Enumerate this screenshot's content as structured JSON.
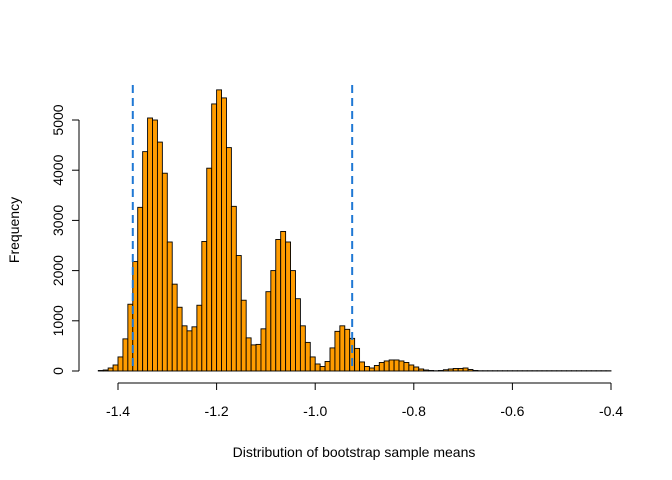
{
  "chart_data": {
    "type": "bar",
    "title": "",
    "xlabel": "Distribution of bootstrap sample means",
    "ylabel": "Frequency",
    "xlim": [
      -1.45,
      -0.4
    ],
    "ylim": [
      0,
      5600
    ],
    "x_ticks": [
      -1.4,
      -1.2,
      -1.0,
      -0.8,
      -0.6,
      -0.4
    ],
    "x_tick_labels": [
      "-1.4",
      "-1.2",
      "-1.0",
      "-0.8",
      "-0.6",
      "-0.4"
    ],
    "y_ticks": [
      0,
      1000,
      2000,
      3000,
      4000,
      5000
    ],
    "y_tick_labels": [
      "0",
      "1000",
      "2000",
      "3000",
      "4000",
      "5000"
    ],
    "bin_width": 0.01,
    "bin_start": -1.44,
    "counts": [
      10,
      20,
      60,
      120,
      280,
      640,
      1330,
      2180,
      3260,
      4370,
      5040,
      5000,
      4560,
      3940,
      2570,
      1730,
      1270,
      900,
      800,
      880,
      1310,
      2580,
      4040,
      5320,
      5600,
      5440,
      4450,
      3280,
      2300,
      1410,
      660,
      520,
      530,
      840,
      1580,
      2000,
      2620,
      2780,
      2570,
      2000,
      1440,
      900,
      570,
      280,
      140,
      90,
      190,
      460,
      790,
      900,
      830,
      650,
      450,
      180,
      90,
      60,
      110,
      170,
      200,
      220,
      220,
      200,
      170,
      120,
      80,
      40,
      20,
      10,
      5,
      10,
      25,
      40,
      50,
      50,
      60,
      30,
      10,
      5,
      5,
      5,
      5,
      5,
      5,
      5,
      5,
      5,
      5,
      5,
      5,
      5,
      5,
      5,
      5,
      5,
      5,
      5,
      5,
      5,
      5,
      5,
      5,
      5,
      5,
      5
    ],
    "vertical_lines": [
      -1.37,
      -0.925
    ],
    "bar_color": "#ff9c00",
    "line_color": "#1f78d4",
    "grid": false,
    "legend": "none"
  }
}
